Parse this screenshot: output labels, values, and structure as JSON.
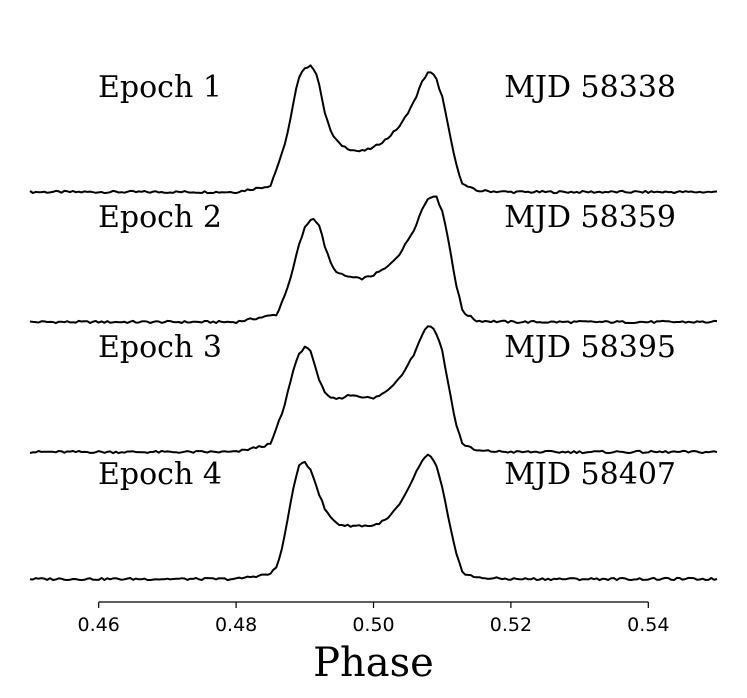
{
  "chart_data": {
    "type": "line",
    "title": "",
    "xlabel": "Phase",
    "ylabel": "",
    "xlim": [
      0.45,
      0.55
    ],
    "xticks": [
      "0.46",
      "0.48",
      "0.50",
      "0.52",
      "0.54"
    ],
    "xtick_values": [
      0.46,
      0.48,
      0.5,
      0.52,
      0.54
    ],
    "grid": false,
    "series": [
      {
        "name": "Epoch 1",
        "mjd": "MJD 58338",
        "x": [
          0.45,
          0.46,
          0.47,
          0.48,
          0.485,
          0.487,
          0.488,
          0.489,
          0.49,
          0.491,
          0.492,
          0.493,
          0.494,
          0.495,
          0.496,
          0.497,
          0.498,
          0.499,
          0.5,
          0.502,
          0.504,
          0.506,
          0.507,
          0.508,
          0.509,
          0.51,
          0.511,
          0.512,
          0.513,
          0.515,
          0.52,
          0.53,
          0.54,
          0.55
        ],
        "y": [
          0.0,
          0.0,
          0.0,
          0.0,
          0.05,
          0.35,
          0.6,
          0.88,
          0.98,
          1.0,
          0.88,
          0.6,
          0.45,
          0.38,
          0.35,
          0.33,
          0.32,
          0.33,
          0.35,
          0.42,
          0.53,
          0.72,
          0.86,
          0.95,
          0.91,
          0.75,
          0.48,
          0.22,
          0.06,
          0.01,
          0.0,
          0.0,
          0.0,
          0.0
        ]
      },
      {
        "name": "Epoch 2",
        "mjd": "MJD 58359",
        "x": [
          0.45,
          0.46,
          0.47,
          0.48,
          0.486,
          0.488,
          0.489,
          0.49,
          0.491,
          0.492,
          0.493,
          0.494,
          0.495,
          0.496,
          0.497,
          0.498,
          0.499,
          0.5,
          0.502,
          0.504,
          0.506,
          0.507,
          0.508,
          0.509,
          0.51,
          0.511,
          0.512,
          0.513,
          0.515,
          0.52,
          0.53,
          0.54,
          0.55
        ],
        "y": [
          0.0,
          0.0,
          0.0,
          0.0,
          0.06,
          0.35,
          0.58,
          0.74,
          0.82,
          0.78,
          0.58,
          0.43,
          0.38,
          0.36,
          0.35,
          0.34,
          0.35,
          0.37,
          0.43,
          0.55,
          0.74,
          0.88,
          0.98,
          1.0,
          0.88,
          0.62,
          0.3,
          0.08,
          0.01,
          0.0,
          0.0,
          0.0,
          0.0
        ]
      },
      {
        "name": "Epoch 3",
        "mjd": "MJD 58395",
        "x": [
          0.45,
          0.46,
          0.47,
          0.48,
          0.485,
          0.487,
          0.488,
          0.489,
          0.49,
          0.491,
          0.492,
          0.493,
          0.494,
          0.495,
          0.496,
          0.497,
          0.498,
          0.499,
          0.5,
          0.502,
          0.504,
          0.506,
          0.507,
          0.508,
          0.509,
          0.51,
          0.511,
          0.512,
          0.513,
          0.515,
          0.52,
          0.53,
          0.54,
          0.55
        ],
        "y": [
          0.0,
          0.0,
          0.0,
          0.0,
          0.06,
          0.35,
          0.58,
          0.76,
          0.83,
          0.78,
          0.58,
          0.45,
          0.42,
          0.42,
          0.44,
          0.45,
          0.44,
          0.43,
          0.42,
          0.48,
          0.6,
          0.78,
          0.92,
          1.0,
          0.96,
          0.8,
          0.5,
          0.22,
          0.06,
          0.01,
          0.0,
          0.0,
          0.0,
          0.0
        ]
      },
      {
        "name": "Epoch 4",
        "mjd": "MJD 58407",
        "x": [
          0.45,
          0.46,
          0.47,
          0.48,
          0.485,
          0.486,
          0.487,
          0.488,
          0.489,
          0.49,
          0.491,
          0.492,
          0.493,
          0.494,
          0.495,
          0.496,
          0.497,
          0.498,
          0.499,
          0.5,
          0.502,
          0.504,
          0.505,
          0.506,
          0.507,
          0.508,
          0.509,
          0.51,
          0.511,
          0.512,
          0.513,
          0.515,
          0.52,
          0.53,
          0.54,
          0.55
        ],
        "y": [
          0.0,
          0.0,
          0.0,
          0.0,
          0.04,
          0.1,
          0.32,
          0.62,
          0.88,
          0.92,
          0.85,
          0.68,
          0.54,
          0.47,
          0.43,
          0.42,
          0.42,
          0.42,
          0.42,
          0.42,
          0.47,
          0.6,
          0.7,
          0.82,
          0.92,
          0.98,
          0.92,
          0.72,
          0.45,
          0.2,
          0.05,
          0.01,
          0.0,
          0.0,
          0.0,
          0.0
        ]
      }
    ]
  }
}
